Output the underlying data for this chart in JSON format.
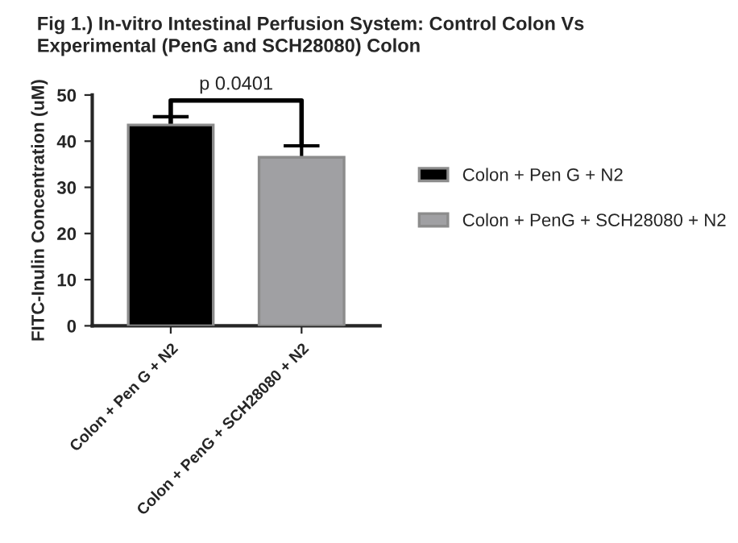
{
  "chart_data": {
    "type": "bar",
    "title": "Fig 1.) In-vitro Intestinal Perfusion System: Control Colon Vs\nExperimental (PenG and SCH28080) Colon",
    "ylabel": "FITC-Inulin Concentration (uM)",
    "categories": [
      "Colon + Pen G + N2",
      "Colon + PenG + SCH28080 + N2"
    ],
    "series": [
      {
        "name": "Colon + Pen G + N2",
        "color": "#000000",
        "values": [
          43.5,
          null
        ],
        "errors": [
          1.8,
          null
        ]
      },
      {
        "name": "Colon + PenG + SCH28080 + N2",
        "color": "#a0a0a3",
        "values": [
          null,
          36.5
        ],
        "errors": [
          null,
          2.5
        ]
      }
    ],
    "ylim": [
      0,
      50
    ],
    "yticks": [
      0,
      10,
      20,
      30,
      40,
      50
    ],
    "grid": false,
    "legend": "right",
    "annotations": [
      "p 0.0401"
    ]
  }
}
